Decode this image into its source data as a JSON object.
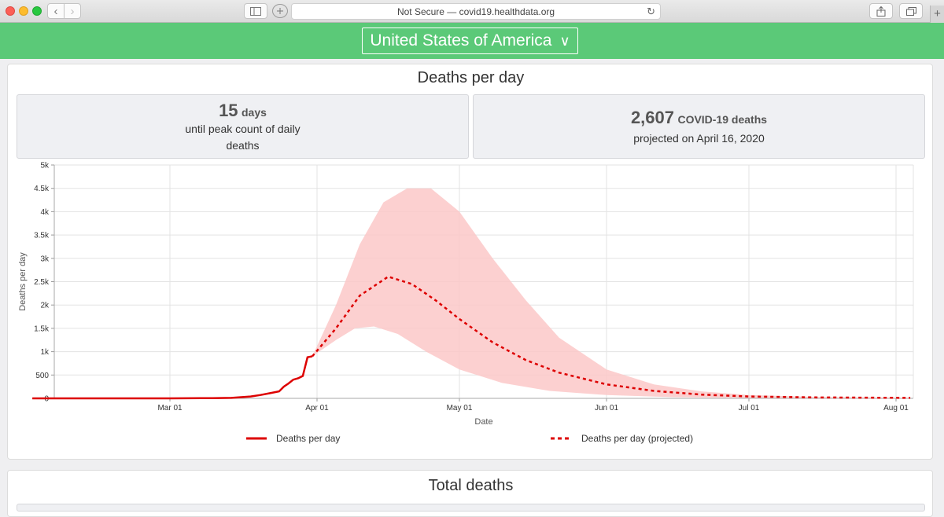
{
  "browser": {
    "address": "Not Secure — covid19.healthdata.org",
    "back_icon": "‹",
    "forward_icon": "›",
    "reload_icon": "↻",
    "plus_icon": "+"
  },
  "header": {
    "country": "United States of America",
    "chevron": "∨",
    "color": "#5bc978"
  },
  "deaths_card": {
    "title": "Deaths per day",
    "peak_days_value": "15",
    "peak_days_unit": "days",
    "peak_days_text1": "until peak count of daily",
    "peak_days_text2": "deaths",
    "projected_value": "2,607",
    "projected_unit": "COVID-19 deaths",
    "projected_text": "projected on April 16, 2020"
  },
  "chart_data": {
    "type": "line",
    "title": "",
    "xlabel": "Date",
    "ylabel": "Deaths per day",
    "ylim": [
      0,
      5000
    ],
    "y_ticks": [
      "0",
      "500",
      "1k",
      "1.5k",
      "2k",
      "2.5k",
      "3k",
      "3.5k",
      "4k",
      "4.5k",
      "5k"
    ],
    "x_ticks": [
      "Mar 01",
      "Apr 01",
      "May 01",
      "Jun 01",
      "Jul 01",
      "Aug 01"
    ],
    "grid": true,
    "legend_position": "bottom",
    "series": [
      {
        "name": "Deaths per day",
        "style": "solid",
        "color": "#dd0000",
        "x": [
          "2020-02-01",
          "2020-03-01",
          "2020-03-10",
          "2020-03-14",
          "2020-03-18",
          "2020-03-20",
          "2020-03-22",
          "2020-03-24",
          "2020-03-25",
          "2020-03-26",
          "2020-03-27",
          "2020-03-28",
          "2020-03-29",
          "2020-03-30",
          "2020-03-31"
        ],
        "y": [
          0,
          0,
          5,
          10,
          40,
          70,
          110,
          150,
          250,
          320,
          400,
          430,
          480,
          880,
          900
        ]
      },
      {
        "name": "Deaths per day (projected)",
        "style": "dashed",
        "color": "#dd0000",
        "x": [
          "2020-03-31",
          "2020-04-05",
          "2020-04-10",
          "2020-04-16",
          "2020-04-21",
          "2020-04-26",
          "2020-05-01",
          "2020-05-08",
          "2020-05-15",
          "2020-05-22",
          "2020-06-01",
          "2020-06-11",
          "2020-06-21",
          "2020-07-01",
          "2020-07-15",
          "2020-08-04"
        ],
        "y": [
          900,
          1500,
          2200,
          2607,
          2450,
          2100,
          1700,
          1200,
          820,
          550,
          300,
          160,
          80,
          40,
          20,
          10
        ]
      },
      {
        "name": "Uncertainty upper",
        "style": "band",
        "color": "#fcc8c8",
        "x": [
          "2020-03-31",
          "2020-04-05",
          "2020-04-10",
          "2020-04-15",
          "2020-04-20",
          "2020-04-25",
          "2020-05-01",
          "2020-05-08",
          "2020-05-15",
          "2020-05-22",
          "2020-06-01",
          "2020-06-11",
          "2020-06-21",
          "2020-07-01",
          "2020-07-15",
          "2020-08-04"
        ],
        "y": [
          900,
          2000,
          3300,
          4200,
          4500,
          4500,
          4000,
          3000,
          2100,
          1300,
          620,
          300,
          150,
          70,
          30,
          15
        ]
      },
      {
        "name": "Uncertainty lower",
        "style": "band",
        "color": "#fcc8c8",
        "x": [
          "2020-03-31",
          "2020-04-05",
          "2020-04-09",
          "2020-04-13",
          "2020-04-18",
          "2020-04-24",
          "2020-05-01",
          "2020-05-10",
          "2020-05-20",
          "2020-06-01",
          "2020-06-15",
          "2020-07-01",
          "2020-08-04"
        ],
        "y": [
          900,
          1250,
          1500,
          1540,
          1380,
          1000,
          620,
          330,
          160,
          70,
          25,
          8,
          2
        ]
      }
    ]
  },
  "legend": {
    "solid_label": "Deaths per day",
    "dashed_label": "Deaths per day (projected)"
  },
  "total_card": {
    "title": "Total deaths"
  }
}
